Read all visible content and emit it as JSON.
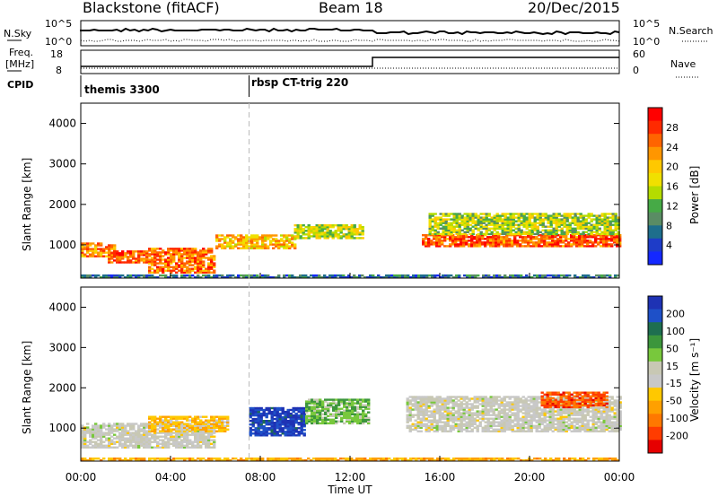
{
  "header": {
    "title": "Blackstone (fitACF)",
    "beam": "Beam 18",
    "date": "20/Dec/2015"
  },
  "top_panels": {
    "nsky_label": "N.Sky",
    "nsky_ticks": [
      "10^5",
      "10^0"
    ],
    "nsearch_label": "N.Search",
    "freq_label": [
      "Freq.",
      "[MHz]"
    ],
    "freq_ticks": [
      "18",
      "8"
    ],
    "nave_label": "Nave",
    "nave_ticks": [
      "60",
      "0"
    ],
    "nsearch_ticks": [
      "10^5",
      "10^0"
    ],
    "cpid_label": "CPID",
    "cpid_segments": [
      {
        "start_hour": 0.0,
        "end_hour": 7.5,
        "name": "themis 3300"
      },
      {
        "start_hour": 7.5,
        "end_hour": 24.0,
        "name": "rbsp CT-trig 220"
      }
    ],
    "freq_step_hour": 13.0
  },
  "colorbars": {
    "power": {
      "label": "Power [dB]",
      "ticks": [
        "28",
        "24",
        "20",
        "16",
        "12",
        "8",
        "4"
      ],
      "colors": [
        "#ff0000",
        "#ff2a00",
        "#ff6400",
        "#ff9600",
        "#ffc800",
        "#f0e000",
        "#b4dc00",
        "#46aa46",
        "#5a8c64",
        "#1e6e8c",
        "#1e3cc8",
        "#1428ff"
      ]
    },
    "velocity": {
      "label": "Velocity [m s⁻¹]",
      "ticks": [
        "200",
        "100",
        "50",
        "15",
        "-15",
        "-50",
        "-100",
        "-200"
      ],
      "colors": [
        "#1e32b4",
        "#1e50c8",
        "#1e6e50",
        "#3c963c",
        "#78c83c",
        "#c8c8b4",
        "#c8c8c8",
        "#ffc800",
        "#ffa000",
        "#ff7800",
        "#ff3c00",
        "#e60000"
      ]
    }
  },
  "chart_data": [
    {
      "type": "heatmap",
      "name": "power",
      "xlabel": "",
      "ylabel": "Slant Range [km]",
      "xlim_hours": [
        0,
        24
      ],
      "ylim": [
        180,
        4500
      ],
      "y_ticks": [
        1000,
        2000,
        3000,
        4000
      ],
      "x_ticks": [
        "00:00",
        "04:00",
        "08:00",
        "12:00",
        "16:00",
        "20:00",
        "00:00"
      ],
      "colorbar_label": "Power [dB]",
      "bands": [
        {
          "t0": 0.0,
          "t1": 1.5,
          "r0": 700,
          "r1": 1050,
          "level": 0.75
        },
        {
          "t0": 1.2,
          "t1": 3.0,
          "r0": 550,
          "r1": 850,
          "level": 0.85
        },
        {
          "t0": 3.0,
          "t1": 6.0,
          "r0": 300,
          "r1": 900,
          "level": 0.8
        },
        {
          "t0": 6.0,
          "t1": 9.5,
          "r0": 900,
          "r1": 1250,
          "level": 0.65
        },
        {
          "t0": 9.5,
          "t1": 12.5,
          "r0": 1150,
          "r1": 1500,
          "level": 0.5
        },
        {
          "t0": 15.2,
          "t1": 24.0,
          "r0": 950,
          "r1": 1250,
          "level": 0.85
        },
        {
          "t0": 15.5,
          "t1": 24.0,
          "r0": 1250,
          "r1": 1750,
          "level": 0.45
        },
        {
          "t0": 0.0,
          "t1": 24.0,
          "r0": 180,
          "r1": 260,
          "level": 0.2
        }
      ]
    },
    {
      "type": "heatmap",
      "name": "velocity",
      "xlabel": "Time UT",
      "ylabel": "Slant Range [km]",
      "xlim_hours": [
        0,
        24
      ],
      "ylim": [
        180,
        4500
      ],
      "y_ticks": [
        1000,
        2000,
        3000,
        4000
      ],
      "x_ticks": [
        "00:00",
        "04:00",
        "08:00",
        "12:00",
        "16:00",
        "20:00",
        "00:00"
      ],
      "colorbar_label": "Velocity [m s⁻¹]",
      "bands": [
        {
          "t0": 0.0,
          "t1": 6.0,
          "r0": 500,
          "r1": 1100,
          "v": 0
        },
        {
          "t0": 3.0,
          "t1": 6.5,
          "r0": 900,
          "r1": 1300,
          "v": -60
        },
        {
          "t0": 7.5,
          "t1": 10.0,
          "r0": 800,
          "r1": 1500,
          "v": 180
        },
        {
          "t0": 10.0,
          "t1": 12.8,
          "r0": 1100,
          "r1": 1700,
          "v": 60
        },
        {
          "t0": 14.5,
          "t1": 24.0,
          "r0": 900,
          "r1": 1800,
          "v": 0
        },
        {
          "t0": 20.5,
          "t1": 23.5,
          "r0": 1500,
          "r1": 1900,
          "v": -150
        },
        {
          "t0": 0.0,
          "t1": 24.0,
          "r0": 180,
          "r1": 260,
          "v": -80
        }
      ]
    }
  ]
}
